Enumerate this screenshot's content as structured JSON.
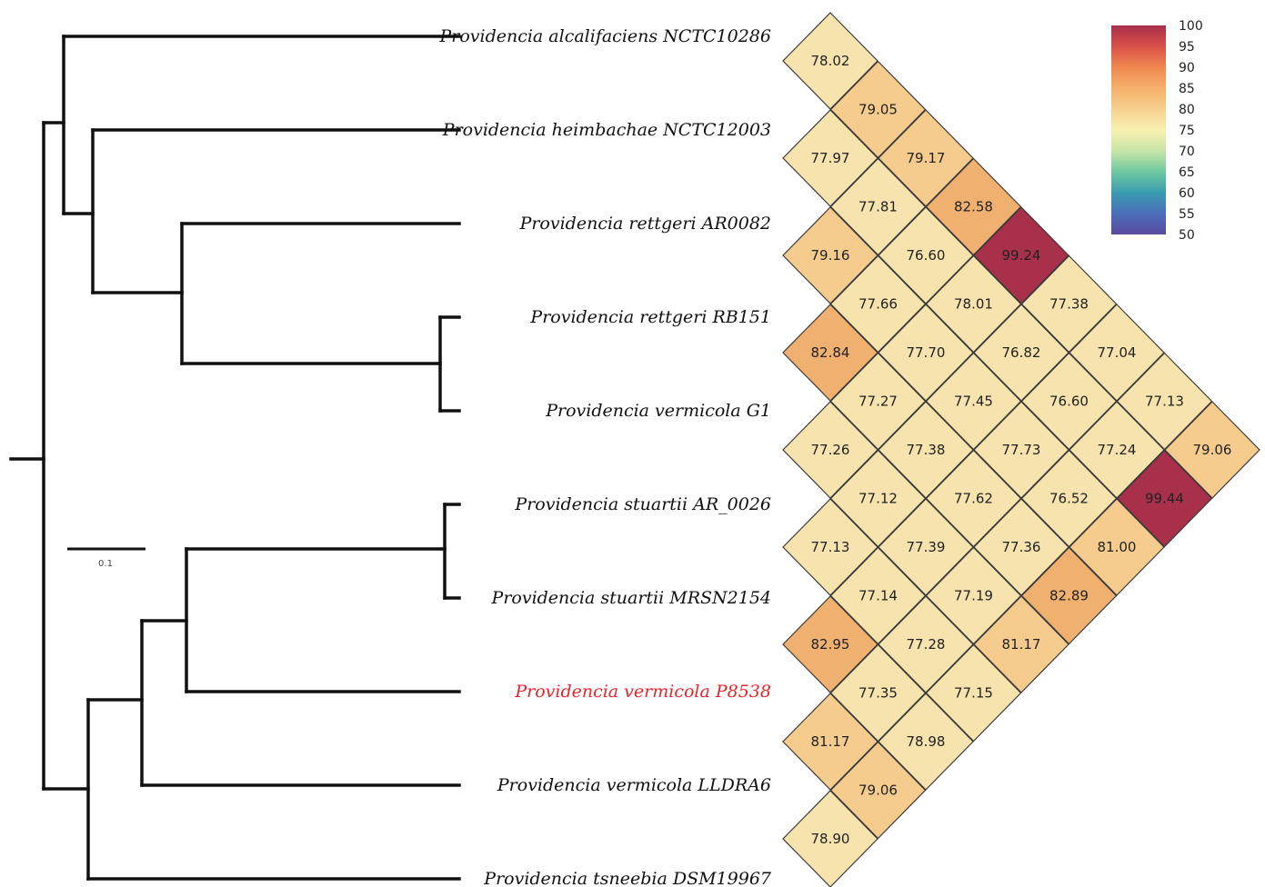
{
  "tree": {
    "taxa": [
      "Providencia alcalifaciens NCTC10286",
      "Providencia heimbachae NCTC12003",
      "Providencia rettgeri AR0082",
      "Providencia rettgeri RB151",
      "Providencia vermicola G1",
      "Providencia stuartii AR_0026",
      "Providencia stuartii MRSN2154",
      "Providencia vermicola P8538",
      "Providencia vermicola LLDRA6",
      "Providencia tsneebia DSM19967"
    ],
    "highlight_index": 7,
    "highlight_color": "#e8232a",
    "label_color": "#111111",
    "scale_bar_label": "0.1"
  },
  "heatmap": {
    "values": [
      [
        78.02,
        77.97,
        79.16,
        82.84,
        77.26,
        77.13,
        82.95,
        81.17,
        78.9
      ],
      [
        79.05,
        77.81,
        77.66,
        77.27,
        77.12,
        77.14,
        77.35,
        79.06
      ],
      [
        79.17,
        76.6,
        77.7,
        77.38,
        77.39,
        77.28,
        78.98
      ],
      [
        82.58,
        78.01,
        77.45,
        77.62,
        77.19,
        77.15
      ],
      [
        99.24,
        76.82,
        77.73,
        77.36,
        81.17
      ],
      [
        77.38,
        76.6,
        76.52,
        82.89
      ],
      [
        77.04,
        77.24,
        81.0
      ],
      [
        77.13,
        99.44
      ],
      [
        79.06
      ]
    ],
    "colors": {
      "very_high": "#a8304a",
      "high": "#f0b070",
      "mid": "#f5cc8e",
      "low": "#f7e3ad"
    },
    "legend": {
      "ticks": [
        "100",
        "95",
        "90",
        "85",
        "80",
        "75",
        "70",
        "65",
        "60",
        "55",
        "50"
      ],
      "gradient": [
        "#a8304a",
        "#d8504a",
        "#f08850",
        "#f5b06a",
        "#f7d08e",
        "#f9f0b0",
        "#c8e6a8",
        "#6ec8a0",
        "#3a9cb0",
        "#4a6eb8",
        "#5a4a9e"
      ]
    }
  }
}
